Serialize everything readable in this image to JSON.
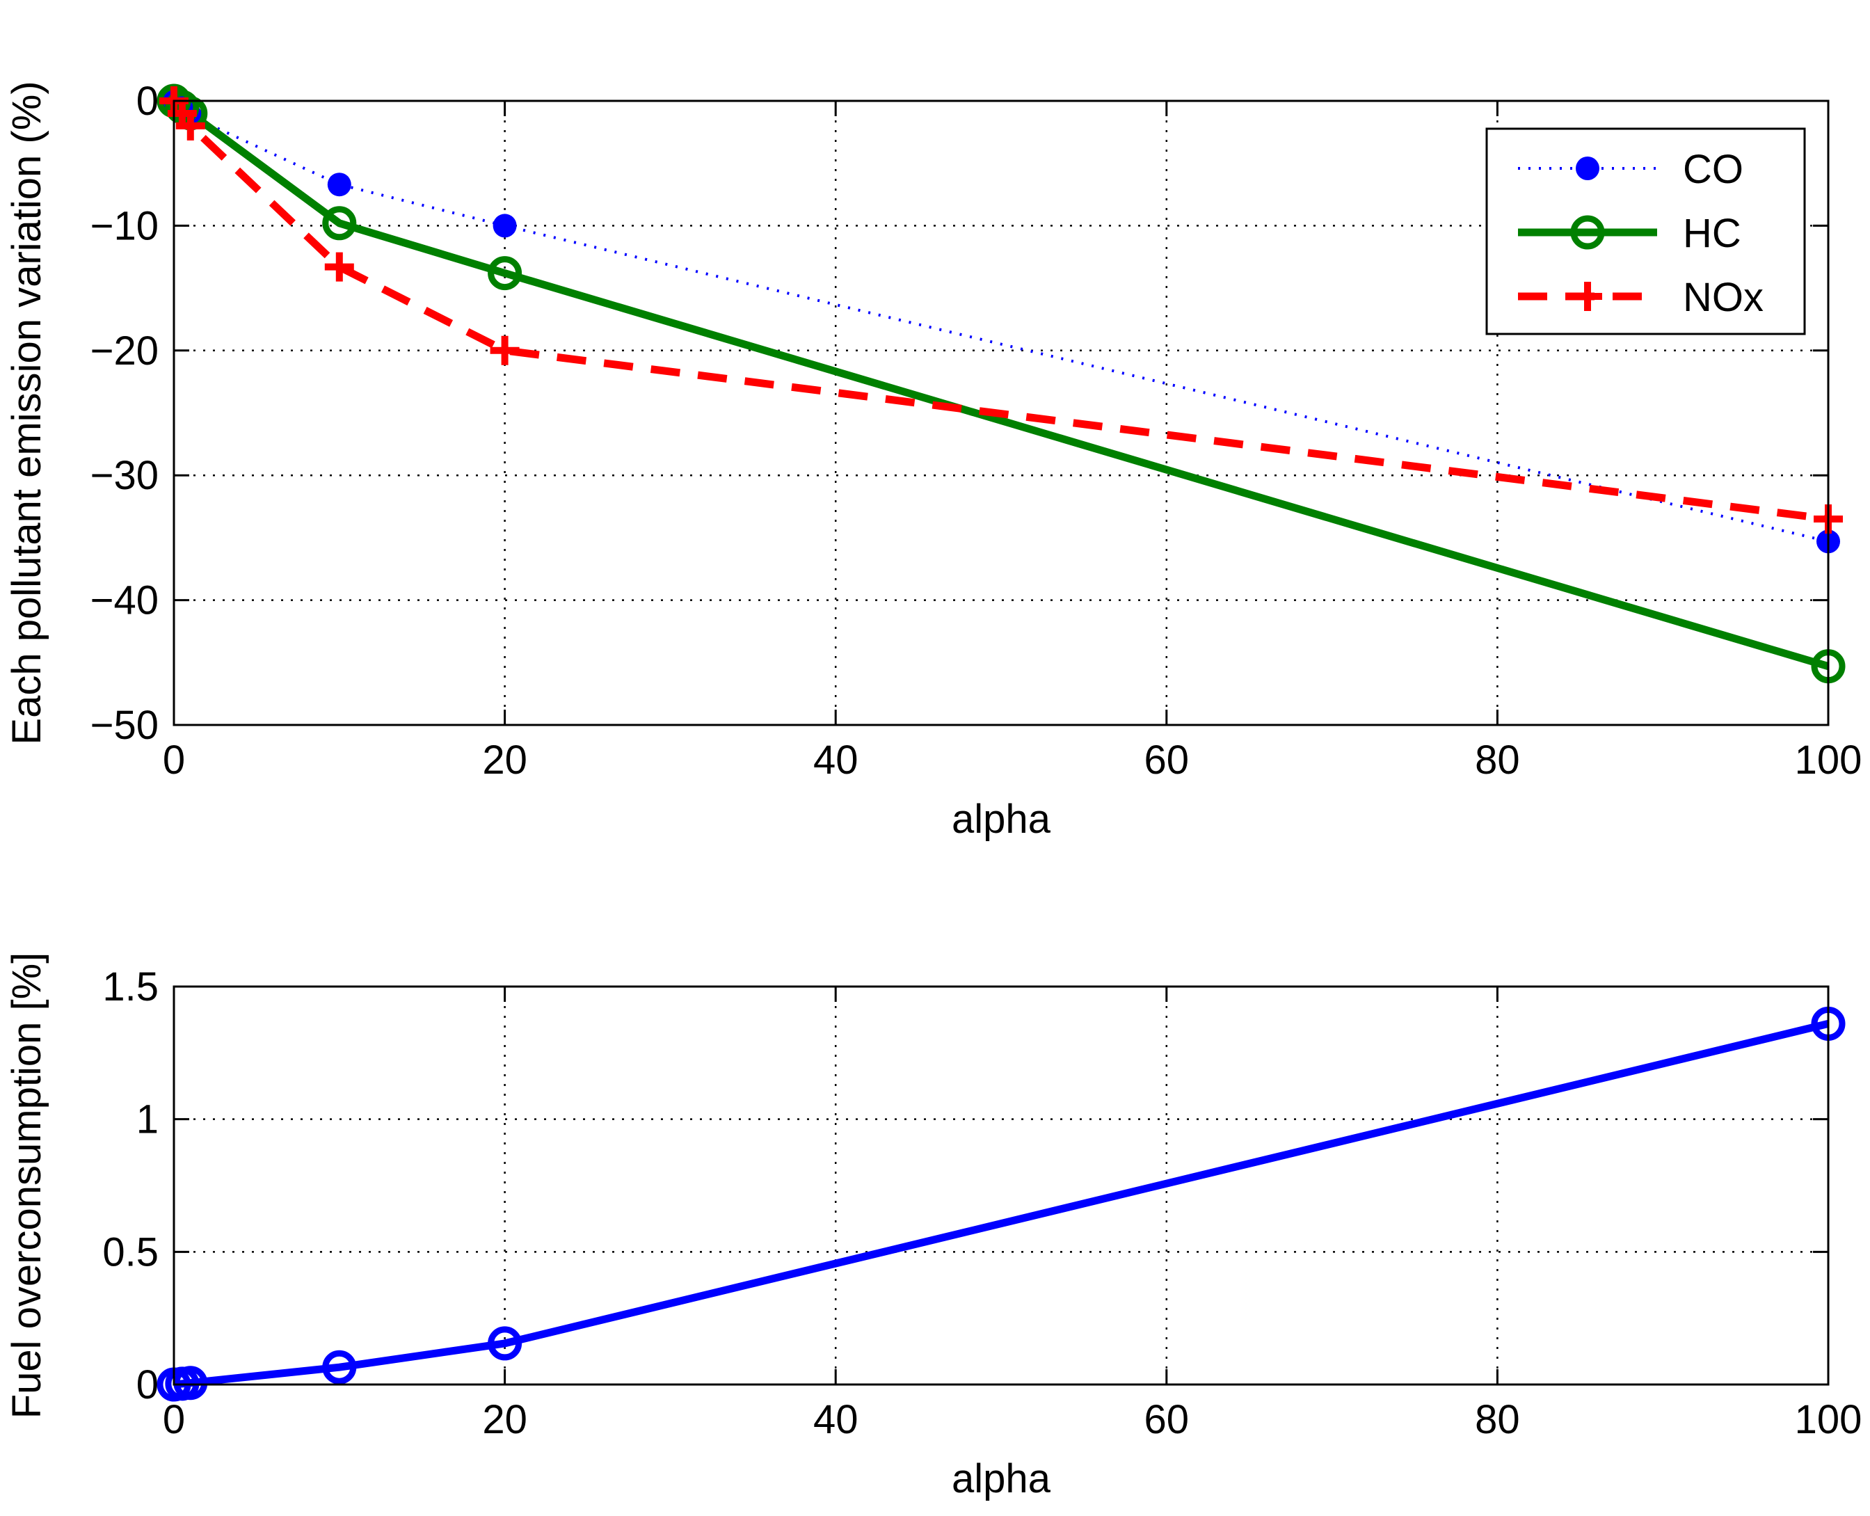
{
  "chart_data": [
    {
      "type": "line",
      "title": "",
      "xlabel": "alpha",
      "ylabel": "Each pollutant emission variation (%)",
      "xlim": [
        0,
        100
      ],
      "ylim": [
        -50,
        0
      ],
      "xticks": [
        0,
        20,
        40,
        60,
        80,
        100
      ],
      "yticks": [
        -50,
        -40,
        -30,
        -20,
        -10,
        0
      ],
      "x_tick_labels": [
        "0",
        "20",
        "40",
        "60",
        "80",
        "100"
      ],
      "y_tick_labels": [
        "−50",
        "−40",
        "−30",
        "−20",
        "−10",
        "0"
      ],
      "grid": true,
      "legend_position": "top-right",
      "x": [
        0,
        0.5,
        1,
        10,
        20,
        100
      ],
      "series": [
        {
          "name": "CO",
          "color": "#0000ff",
          "style": "dotted",
          "marker": "dot",
          "values": [
            0,
            -0.6,
            -1.2,
            -6.7,
            -10.0,
            -35.3
          ]
        },
        {
          "name": "HC",
          "color": "#008000",
          "style": "solid",
          "marker": "circle",
          "values": [
            0,
            -0.5,
            -1.0,
            -9.8,
            -13.8,
            -45.3
          ]
        },
        {
          "name": "NOx",
          "color": "#ff0000",
          "style": "dashed",
          "marker": "plus",
          "values": [
            0,
            -1.0,
            -2.0,
            -13.3,
            -20.0,
            -33.5
          ]
        }
      ]
    },
    {
      "type": "line",
      "title": "",
      "xlabel": "alpha",
      "ylabel": "Fuel overconsumption [%]",
      "xlim": [
        0,
        100
      ],
      "ylim": [
        0,
        1.5
      ],
      "xticks": [
        0,
        20,
        40,
        60,
        80,
        100
      ],
      "yticks": [
        0,
        0.5,
        1,
        1.5
      ],
      "x_tick_labels": [
        "0",
        "20",
        "40",
        "60",
        "80",
        "100"
      ],
      "y_tick_labels": [
        "0",
        "0.5",
        "1",
        "1.5"
      ],
      "grid": true,
      "x": [
        0,
        0.5,
        1,
        10,
        20,
        100
      ],
      "series": [
        {
          "name": "Fuel overconsumption",
          "color": "#0000ff",
          "style": "solid",
          "marker": "circle",
          "values": [
            0,
            0.003,
            0.006,
            0.065,
            0.155,
            1.36
          ]
        }
      ]
    }
  ]
}
